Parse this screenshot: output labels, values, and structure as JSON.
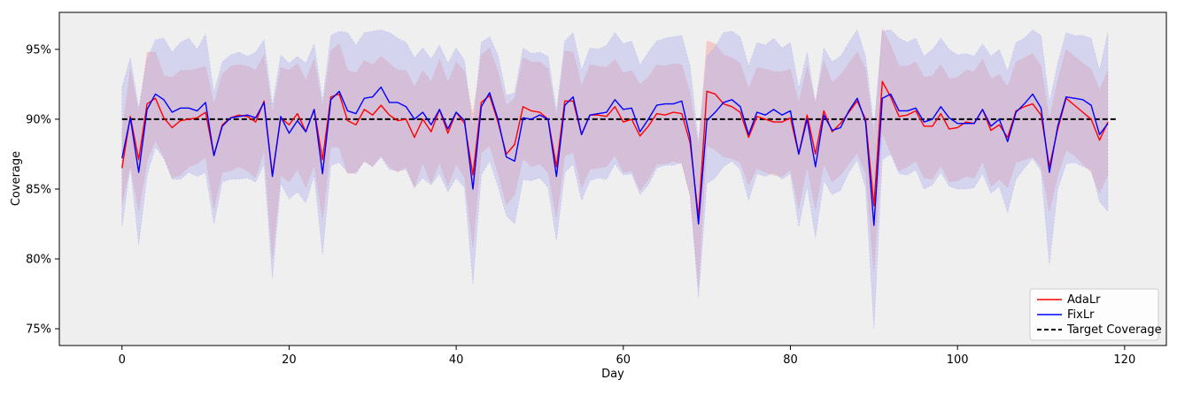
{
  "chart_data": {
    "type": "line",
    "xlabel": "Day",
    "ylabel": "Coverage",
    "xlim": [
      -7.5,
      125
    ],
    "ylim": [
      0.738,
      0.9765
    ],
    "xticks": [
      0,
      20,
      40,
      60,
      80,
      100,
      120
    ],
    "xtick_labels": [
      "0",
      "20",
      "40",
      "60",
      "80",
      "100",
      "120"
    ],
    "yticks": [
      0.75,
      0.8,
      0.85,
      0.9,
      0.95
    ],
    "ytick_labels": [
      "75%",
      "80%",
      "85%",
      "90%",
      "95%"
    ],
    "grid": false,
    "legend_position": "bottom-right",
    "background_color": "#efefef",
    "target": {
      "name": "Target Coverage",
      "value": 0.9,
      "color": "#000000",
      "style": "dashed"
    },
    "x": [
      0,
      1,
      2,
      3,
      4,
      5,
      6,
      7,
      8,
      9,
      10,
      11,
      12,
      13,
      14,
      15,
      16,
      17,
      18,
      19,
      20,
      21,
      22,
      23,
      24,
      25,
      26,
      27,
      28,
      29,
      30,
      31,
      32,
      33,
      34,
      35,
      36,
      37,
      38,
      39,
      40,
      41,
      42,
      43,
      44,
      45,
      46,
      47,
      48,
      49,
      50,
      51,
      52,
      53,
      54,
      55,
      56,
      57,
      58,
      59,
      60,
      61,
      62,
      63,
      64,
      65,
      66,
      67,
      68,
      69,
      70,
      71,
      72,
      73,
      74,
      75,
      76,
      77,
      78,
      79,
      80,
      81,
      82,
      83,
      84,
      85,
      86,
      87,
      88,
      89,
      90,
      91,
      92,
      93,
      94,
      95,
      96,
      97,
      98,
      99,
      100,
      101,
      102,
      103,
      104,
      105,
      106,
      107,
      108,
      109,
      110,
      111,
      112,
      113,
      114,
      115,
      116,
      117,
      118
    ],
    "series": [
      {
        "name": "AdaLr",
        "color": "#ff0000",
        "band_color": "#f4a09a",
        "values": [
          0.865,
          0.902,
          0.871,
          0.911,
          0.915,
          0.901,
          0.894,
          0.899,
          0.9,
          0.901,
          0.905,
          0.874,
          0.896,
          0.901,
          0.903,
          0.902,
          0.898,
          0.913,
          0.86,
          0.901,
          0.896,
          0.904,
          0.891,
          0.907,
          0.871,
          0.916,
          0.918,
          0.899,
          0.896,
          0.907,
          0.903,
          0.91,
          0.903,
          0.899,
          0.9,
          0.887,
          0.9,
          0.891,
          0.907,
          0.89,
          0.905,
          0.897,
          0.86,
          0.912,
          0.917,
          0.898,
          0.875,
          0.882,
          0.909,
          0.906,
          0.905,
          0.9,
          0.866,
          0.913,
          0.913,
          0.889,
          0.903,
          0.903,
          0.902,
          0.909,
          0.898,
          0.9,
          0.888,
          0.895,
          0.904,
          0.903,
          0.905,
          0.904,
          0.883,
          0.83,
          0.92,
          0.918,
          0.911,
          0.909,
          0.905,
          0.887,
          0.902,
          0.9,
          0.898,
          0.898,
          0.901,
          0.875,
          0.903,
          0.875,
          0.906,
          0.891,
          0.897,
          0.905,
          0.913,
          0.9,
          0.838,
          0.927,
          0.916,
          0.902,
          0.903,
          0.906,
          0.895,
          0.895,
          0.904,
          0.893,
          0.894,
          0.898,
          0.897,
          0.907,
          0.892,
          0.896,
          0.887,
          0.906,
          0.909,
          0.911,
          0.903,
          0.866,
          0.893,
          0.915,
          0.91,
          0.905,
          0.9,
          0.885,
          0.898
        ],
        "lower": [
          0.838,
          0.867,
          0.834,
          0.87,
          0.885,
          0.873,
          0.858,
          0.86,
          0.866,
          0.868,
          0.873,
          0.836,
          0.862,
          0.863,
          0.866,
          0.863,
          0.858,
          0.878,
          0.8,
          0.86,
          0.855,
          0.864,
          0.851,
          0.867,
          0.829,
          0.88,
          0.88,
          0.861,
          0.862,
          0.87,
          0.866,
          0.874,
          0.866,
          0.862,
          0.866,
          0.851,
          0.869,
          0.854,
          0.869,
          0.852,
          0.868,
          0.858,
          0.808,
          0.876,
          0.881,
          0.861,
          0.839,
          0.846,
          0.872,
          0.866,
          0.868,
          0.862,
          0.829,
          0.874,
          0.876,
          0.851,
          0.864,
          0.865,
          0.866,
          0.874,
          0.862,
          0.863,
          0.849,
          0.857,
          0.868,
          0.868,
          0.87,
          0.868,
          0.845,
          0.78,
          0.881,
          0.878,
          0.873,
          0.872,
          0.869,
          0.853,
          0.865,
          0.862,
          0.86,
          0.859,
          0.864,
          0.836,
          0.866,
          0.835,
          0.868,
          0.855,
          0.86,
          0.868,
          0.876,
          0.861,
          0.79,
          0.89,
          0.876,
          0.863,
          0.866,
          0.87,
          0.858,
          0.857,
          0.867,
          0.855,
          0.856,
          0.859,
          0.858,
          0.87,
          0.852,
          0.857,
          0.851,
          0.869,
          0.871,
          0.873,
          0.866,
          0.834,
          0.86,
          0.878,
          0.874,
          0.868,
          0.862,
          0.847,
          0.86
        ],
        "upper": [
          0.89,
          0.936,
          0.905,
          0.948,
          0.948,
          0.931,
          0.93,
          0.935,
          0.935,
          0.936,
          0.938,
          0.911,
          0.932,
          0.938,
          0.939,
          0.938,
          0.935,
          0.946,
          0.905,
          0.937,
          0.935,
          0.94,
          0.928,
          0.943,
          0.909,
          0.949,
          0.954,
          0.935,
          0.933,
          0.942,
          0.939,
          0.945,
          0.94,
          0.935,
          0.935,
          0.923,
          0.935,
          0.927,
          0.943,
          0.926,
          0.941,
          0.934,
          0.903,
          0.946,
          0.951,
          0.934,
          0.91,
          0.915,
          0.944,
          0.941,
          0.941,
          0.936,
          0.902,
          0.949,
          0.948,
          0.924,
          0.939,
          0.938,
          0.937,
          0.943,
          0.933,
          0.935,
          0.925,
          0.93,
          0.939,
          0.938,
          0.94,
          0.939,
          0.919,
          0.88,
          0.956,
          0.954,
          0.946,
          0.944,
          0.94,
          0.922,
          0.937,
          0.936,
          0.934,
          0.934,
          0.936,
          0.912,
          0.938,
          0.912,
          0.942,
          0.926,
          0.932,
          0.94,
          0.948,
          0.936,
          0.888,
          0.965,
          0.953,
          0.938,
          0.938,
          0.941,
          0.93,
          0.931,
          0.939,
          0.929,
          0.93,
          0.935,
          0.934,
          0.943,
          0.929,
          0.932,
          0.923,
          0.941,
          0.944,
          0.947,
          0.938,
          0.9,
          0.928,
          0.95,
          0.945,
          0.94,
          0.936,
          0.921,
          0.935
        ]
      },
      {
        "name": "FixLr",
        "color": "#0000ff",
        "band_color": "#a8a8f0",
        "values": [
          0.872,
          0.901,
          0.862,
          0.907,
          0.918,
          0.914,
          0.905,
          0.908,
          0.908,
          0.906,
          0.912,
          0.874,
          0.895,
          0.901,
          0.902,
          0.903,
          0.901,
          0.912,
          0.859,
          0.902,
          0.89,
          0.899,
          0.891,
          0.907,
          0.861,
          0.914,
          0.92,
          0.906,
          0.904,
          0.915,
          0.916,
          0.923,
          0.912,
          0.912,
          0.909,
          0.9,
          0.905,
          0.896,
          0.907,
          0.893,
          0.905,
          0.899,
          0.85,
          0.909,
          0.919,
          0.9,
          0.873,
          0.87,
          0.901,
          0.9,
          0.903,
          0.9,
          0.859,
          0.91,
          0.916,
          0.889,
          0.903,
          0.904,
          0.905,
          0.914,
          0.907,
          0.908,
          0.891,
          0.9,
          0.91,
          0.911,
          0.911,
          0.913,
          0.887,
          0.825,
          0.899,
          0.905,
          0.912,
          0.914,
          0.909,
          0.889,
          0.905,
          0.903,
          0.907,
          0.903,
          0.906,
          0.875,
          0.9,
          0.866,
          0.903,
          0.892,
          0.894,
          0.906,
          0.915,
          0.898,
          0.824,
          0.915,
          0.918,
          0.906,
          0.906,
          0.908,
          0.898,
          0.9,
          0.909,
          0.901,
          0.897,
          0.897,
          0.897,
          0.907,
          0.895,
          0.9,
          0.884,
          0.905,
          0.911,
          0.918,
          0.908,
          0.862,
          0.895,
          0.916,
          0.915,
          0.914,
          0.91,
          0.889,
          0.897
        ],
        "lower": [
          0.823,
          0.866,
          0.81,
          0.86,
          0.88,
          0.872,
          0.857,
          0.857,
          0.862,
          0.859,
          0.862,
          0.825,
          0.855,
          0.857,
          0.857,
          0.858,
          0.855,
          0.868,
          0.786,
          0.854,
          0.843,
          0.848,
          0.84,
          0.86,
          0.803,
          0.867,
          0.869,
          0.862,
          0.861,
          0.87,
          0.866,
          0.873,
          0.864,
          0.863,
          0.864,
          0.851,
          0.858,
          0.853,
          0.861,
          0.848,
          0.858,
          0.851,
          0.782,
          0.86,
          0.87,
          0.852,
          0.831,
          0.825,
          0.857,
          0.856,
          0.858,
          0.851,
          0.813,
          0.862,
          0.868,
          0.842,
          0.856,
          0.858,
          0.857,
          0.868,
          0.86,
          0.861,
          0.846,
          0.853,
          0.865,
          0.867,
          0.867,
          0.869,
          0.845,
          0.772,
          0.854,
          0.858,
          0.866,
          0.87,
          0.864,
          0.842,
          0.861,
          0.859,
          0.862,
          0.857,
          0.861,
          0.823,
          0.852,
          0.815,
          0.856,
          0.846,
          0.849,
          0.862,
          0.871,
          0.851,
          0.75,
          0.871,
          0.875,
          0.861,
          0.86,
          0.864,
          0.85,
          0.853,
          0.862,
          0.852,
          0.85,
          0.85,
          0.851,
          0.861,
          0.847,
          0.852,
          0.833,
          0.857,
          0.865,
          0.872,
          0.863,
          0.796,
          0.85,
          0.868,
          0.869,
          0.866,
          0.864,
          0.841,
          0.834
        ],
        "upper": [
          0.923,
          0.944,
          0.908,
          0.943,
          0.957,
          0.958,
          0.948,
          0.955,
          0.958,
          0.95,
          0.961,
          0.919,
          0.941,
          0.946,
          0.948,
          0.945,
          0.948,
          0.957,
          0.91,
          0.946,
          0.94,
          0.945,
          0.94,
          0.954,
          0.913,
          0.96,
          0.963,
          0.962,
          0.953,
          0.962,
          0.963,
          0.964,
          0.962,
          0.958,
          0.955,
          0.944,
          0.951,
          0.943,
          0.953,
          0.94,
          0.951,
          0.942,
          0.893,
          0.955,
          0.959,
          0.946,
          0.917,
          0.919,
          0.951,
          0.947,
          0.948,
          0.945,
          0.906,
          0.956,
          0.962,
          0.935,
          0.951,
          0.95,
          0.953,
          0.962,
          0.954,
          0.956,
          0.939,
          0.948,
          0.956,
          0.958,
          0.959,
          0.96,
          0.938,
          0.883,
          0.945,
          0.952,
          0.962,
          0.963,
          0.959,
          0.938,
          0.955,
          0.953,
          0.958,
          0.951,
          0.955,
          0.922,
          0.948,
          0.911,
          0.951,
          0.941,
          0.945,
          0.955,
          0.964,
          0.945,
          0.894,
          0.963,
          0.964,
          0.958,
          0.955,
          0.958,
          0.945,
          0.95,
          0.958,
          0.95,
          0.946,
          0.947,
          0.945,
          0.954,
          0.945,
          0.95,
          0.934,
          0.955,
          0.958,
          0.964,
          0.96,
          0.912,
          0.94,
          0.962,
          0.96,
          0.96,
          0.958,
          0.935,
          0.962
        ]
      }
    ]
  }
}
